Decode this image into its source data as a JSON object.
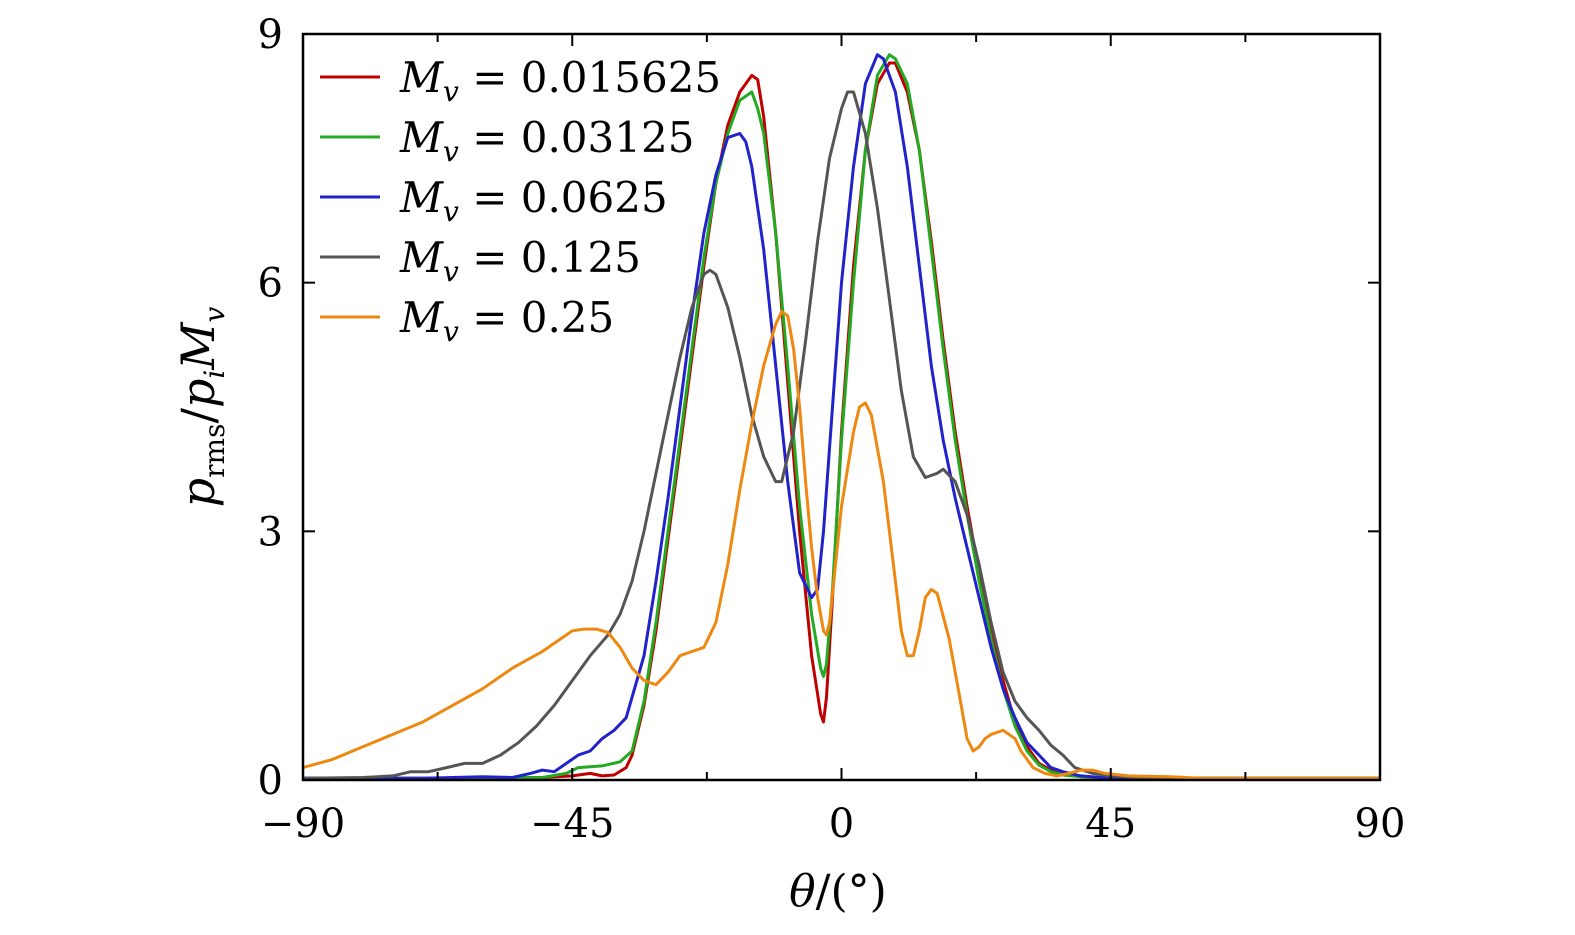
{
  "chart_data": {
    "type": "line",
    "title": "",
    "xlabel": "θ/(°)",
    "xlabel_parts": {
      "var": "θ",
      "rest": "/(°)"
    },
    "ylabel": "p_rms/p_i M_v",
    "ylabel_parts": {
      "p": "p",
      "rms": "rms",
      "slash": "/",
      "pi": "p",
      "i": "i",
      "M": "M",
      "v": "v"
    },
    "xlim": [
      -90,
      90
    ],
    "ylim": [
      0,
      9
    ],
    "xticks": [
      -90,
      -45,
      0,
      45,
      90
    ],
    "xtick_labels": [
      "−90",
      "−45",
      "0",
      "45",
      "90"
    ],
    "xminor": [
      -67.5,
      -22.5,
      22.5,
      67.5
    ],
    "yticks": [
      0,
      3,
      6,
      9
    ],
    "ytick_labels": [
      "0",
      "3",
      "6",
      "9"
    ],
    "grid": false,
    "legend_position": "top-left",
    "series": [
      {
        "name": "M_v = 0.015625",
        "label_value": "0.015625",
        "color": "#c00000",
        "points": [
          [
            -90,
            0.02
          ],
          [
            -60,
            0.02
          ],
          [
            -50,
            0.03
          ],
          [
            -45,
            0.05
          ],
          [
            -42,
            0.08
          ],
          [
            -40,
            0.05
          ],
          [
            -38,
            0.06
          ],
          [
            -36,
            0.15
          ],
          [
            -35,
            0.3
          ],
          [
            -33,
            0.9
          ],
          [
            -31,
            1.8
          ],
          [
            -29,
            2.9
          ],
          [
            -27,
            4.0
          ],
          [
            -25,
            5.1
          ],
          [
            -23,
            6.2
          ],
          [
            -21,
            7.2
          ],
          [
            -19,
            7.9
          ],
          [
            -17,
            8.3
          ],
          [
            -15,
            8.5
          ],
          [
            -14,
            8.45
          ],
          [
            -13,
            8.0
          ],
          [
            -11,
            6.6
          ],
          [
            -9,
            4.8
          ],
          [
            -7,
            3.0
          ],
          [
            -5,
            1.5
          ],
          [
            -3.5,
            0.8
          ],
          [
            -3,
            0.7
          ],
          [
            -2.5,
            1.0
          ],
          [
            -1.5,
            2.2
          ],
          [
            0,
            4.2
          ],
          [
            2,
            6.2
          ],
          [
            4,
            7.6
          ],
          [
            6,
            8.4
          ],
          [
            8,
            8.65
          ],
          [
            9,
            8.65
          ],
          [
            11,
            8.3
          ],
          [
            13,
            7.6
          ],
          [
            15,
            6.5
          ],
          [
            17,
            5.3
          ],
          [
            19,
            4.2
          ],
          [
            21,
            3.3
          ],
          [
            23,
            2.5
          ],
          [
            25,
            1.8
          ],
          [
            27,
            1.2
          ],
          [
            29,
            0.7
          ],
          [
            31,
            0.4
          ],
          [
            33,
            0.2
          ],
          [
            35,
            0.12
          ],
          [
            37,
            0.08
          ],
          [
            40,
            0.04
          ],
          [
            45,
            0.02
          ],
          [
            60,
            0.02
          ],
          [
            90,
            0.02
          ]
        ]
      },
      {
        "name": "M_v = 0.03125",
        "label_value": "0.03125",
        "color": "#22aa22",
        "points": [
          [
            -90,
            0.02
          ],
          [
            -60,
            0.02
          ],
          [
            -50,
            0.03
          ],
          [
            -46,
            0.08
          ],
          [
            -44,
            0.15
          ],
          [
            -40,
            0.17
          ],
          [
            -37,
            0.22
          ],
          [
            -35,
            0.35
          ],
          [
            -33,
            0.95
          ],
          [
            -31,
            1.9
          ],
          [
            -29,
            3.0
          ],
          [
            -27,
            4.1
          ],
          [
            -25,
            5.2
          ],
          [
            -23,
            6.3
          ],
          [
            -21,
            7.2
          ],
          [
            -19,
            7.8
          ],
          [
            -17,
            8.2
          ],
          [
            -15,
            8.3
          ],
          [
            -14,
            8.1
          ],
          [
            -13,
            7.8
          ],
          [
            -11,
            6.6
          ],
          [
            -9,
            5.0
          ],
          [
            -7,
            3.3
          ],
          [
            -5,
            2.0
          ],
          [
            -3.5,
            1.35
          ],
          [
            -3,
            1.25
          ],
          [
            -2.5,
            1.4
          ],
          [
            -1.5,
            2.3
          ],
          [
            0,
            4.1
          ],
          [
            2,
            6.0
          ],
          [
            4,
            7.6
          ],
          [
            6,
            8.5
          ],
          [
            8,
            8.75
          ],
          [
            9,
            8.7
          ],
          [
            11,
            8.4
          ],
          [
            13,
            7.6
          ],
          [
            15,
            6.4
          ],
          [
            17,
            5.2
          ],
          [
            19,
            4.1
          ],
          [
            21,
            3.2
          ],
          [
            23,
            2.4
          ],
          [
            25,
            1.7
          ],
          [
            27,
            1.1
          ],
          [
            29,
            0.65
          ],
          [
            31,
            0.35
          ],
          [
            33,
            0.18
          ],
          [
            35,
            0.1
          ],
          [
            37,
            0.06
          ],
          [
            40,
            0.04
          ],
          [
            45,
            0.02
          ],
          [
            60,
            0.02
          ],
          [
            90,
            0.02
          ]
        ]
      },
      {
        "name": "M_v = 0.0625",
        "label_value": "0.0625",
        "color": "#2222cc",
        "points": [
          [
            -90,
            0.02
          ],
          [
            -70,
            0.02
          ],
          [
            -60,
            0.04
          ],
          [
            -55,
            0.03
          ],
          [
            -52,
            0.08
          ],
          [
            -50,
            0.12
          ],
          [
            -48,
            0.1
          ],
          [
            -46,
            0.2
          ],
          [
            -44,
            0.3
          ],
          [
            -42,
            0.35
          ],
          [
            -40,
            0.5
          ],
          [
            -38,
            0.6
          ],
          [
            -36,
            0.75
          ],
          [
            -35,
            1.0
          ],
          [
            -33,
            1.5
          ],
          [
            -31,
            2.4
          ],
          [
            -29,
            3.4
          ],
          [
            -27,
            4.5
          ],
          [
            -25,
            5.6
          ],
          [
            -23,
            6.6
          ],
          [
            -21,
            7.3
          ],
          [
            -19,
            7.75
          ],
          [
            -17,
            7.8
          ],
          [
            -16,
            7.7
          ],
          [
            -15,
            7.4
          ],
          [
            -13,
            6.4
          ],
          [
            -11,
            5.0
          ],
          [
            -9,
            3.6
          ],
          [
            -7,
            2.5
          ],
          [
            -5,
            2.2
          ],
          [
            -4,
            2.3
          ],
          [
            -3,
            3.0
          ],
          [
            -1.5,
            4.5
          ],
          [
            0,
            6.0
          ],
          [
            2,
            7.4
          ],
          [
            4,
            8.4
          ],
          [
            6,
            8.75
          ],
          [
            7,
            8.7
          ],
          [
            9,
            8.3
          ],
          [
            11,
            7.4
          ],
          [
            13,
            6.2
          ],
          [
            15,
            5.0
          ],
          [
            17,
            4.1
          ],
          [
            19,
            3.4
          ],
          [
            21,
            2.8
          ],
          [
            23,
            2.2
          ],
          [
            25,
            1.6
          ],
          [
            27,
            1.1
          ],
          [
            29,
            0.75
          ],
          [
            31,
            0.45
          ],
          [
            33,
            0.3
          ],
          [
            35,
            0.15
          ],
          [
            37,
            0.1
          ],
          [
            40,
            0.05
          ],
          [
            45,
            0.02
          ],
          [
            60,
            0.02
          ],
          [
            90,
            0.02
          ]
        ]
      },
      {
        "name": "M_v = 0.125",
        "label_value": "0.125",
        "color": "#555555",
        "points": [
          [
            -90,
            0.02
          ],
          [
            -80,
            0.03
          ],
          [
            -75,
            0.05
          ],
          [
            -72,
            0.1
          ],
          [
            -69,
            0.1
          ],
          [
            -66,
            0.15
          ],
          [
            -63,
            0.2
          ],
          [
            -60,
            0.2
          ],
          [
            -57,
            0.3
          ],
          [
            -54,
            0.45
          ],
          [
            -51,
            0.65
          ],
          [
            -48,
            0.9
          ],
          [
            -45,
            1.2
          ],
          [
            -42,
            1.5
          ],
          [
            -39,
            1.75
          ],
          [
            -37,
            2.0
          ],
          [
            -35,
            2.4
          ],
          [
            -33,
            3.0
          ],
          [
            -31,
            3.7
          ],
          [
            -29,
            4.4
          ],
          [
            -27,
            5.1
          ],
          [
            -25,
            5.7
          ],
          [
            -23,
            6.1
          ],
          [
            -22,
            6.15
          ],
          [
            -21,
            6.1
          ],
          [
            -19,
            5.7
          ],
          [
            -17,
            5.1
          ],
          [
            -15,
            4.4
          ],
          [
            -13,
            3.9
          ],
          [
            -11,
            3.6
          ],
          [
            -10,
            3.6
          ],
          [
            -8,
            4.2
          ],
          [
            -6,
            5.3
          ],
          [
            -4,
            6.5
          ],
          [
            -2,
            7.5
          ],
          [
            0,
            8.1
          ],
          [
            1,
            8.3
          ],
          [
            2,
            8.3
          ],
          [
            4,
            7.8
          ],
          [
            6,
            6.9
          ],
          [
            8,
            5.8
          ],
          [
            10,
            4.7
          ],
          [
            12,
            3.9
          ],
          [
            14,
            3.65
          ],
          [
            16,
            3.7
          ],
          [
            17,
            3.75
          ],
          [
            19,
            3.6
          ],
          [
            21,
            3.2
          ],
          [
            23,
            2.6
          ],
          [
            25,
            1.9
          ],
          [
            27,
            1.3
          ],
          [
            29,
            0.95
          ],
          [
            31,
            0.75
          ],
          [
            33,
            0.6
          ],
          [
            35,
            0.42
          ],
          [
            37,
            0.3
          ],
          [
            39,
            0.15
          ],
          [
            42,
            0.08
          ],
          [
            45,
            0.05
          ],
          [
            50,
            0.03
          ],
          [
            60,
            0.02
          ],
          [
            90,
            0.02
          ]
        ]
      },
      {
        "name": "M_v = 0.25",
        "label_value": "0.25",
        "color": "#ee8811",
        "points": [
          [
            -90,
            0.15
          ],
          [
            -85,
            0.25
          ],
          [
            -80,
            0.4
          ],
          [
            -75,
            0.55
          ],
          [
            -70,
            0.7
          ],
          [
            -65,
            0.9
          ],
          [
            -60,
            1.1
          ],
          [
            -55,
            1.35
          ],
          [
            -50,
            1.55
          ],
          [
            -47,
            1.7
          ],
          [
            -45,
            1.8
          ],
          [
            -43,
            1.82
          ],
          [
            -41,
            1.82
          ],
          [
            -39,
            1.78
          ],
          [
            -37,
            1.6
          ],
          [
            -35,
            1.35
          ],
          [
            -33,
            1.2
          ],
          [
            -31,
            1.15
          ],
          [
            -29,
            1.3
          ],
          [
            -27,
            1.5
          ],
          [
            -25,
            1.55
          ],
          [
            -23,
            1.6
          ],
          [
            -21,
            1.9
          ],
          [
            -19,
            2.6
          ],
          [
            -17,
            3.5
          ],
          [
            -15,
            4.3
          ],
          [
            -13,
            5.0
          ],
          [
            -11,
            5.5
          ],
          [
            -10,
            5.65
          ],
          [
            -9,
            5.6
          ],
          [
            -8,
            5.2
          ],
          [
            -7,
            4.5
          ],
          [
            -6,
            3.6
          ],
          [
            -5,
            2.8
          ],
          [
            -4,
            2.2
          ],
          [
            -3,
            1.8
          ],
          [
            -2.5,
            1.75
          ],
          [
            -2,
            1.9
          ],
          [
            -1,
            2.6
          ],
          [
            0,
            3.3
          ],
          [
            2,
            4.2
          ],
          [
            3,
            4.5
          ],
          [
            4,
            4.55
          ],
          [
            5,
            4.4
          ],
          [
            7,
            3.6
          ],
          [
            9,
            2.4
          ],
          [
            10,
            1.8
          ],
          [
            11,
            1.5
          ],
          [
            12,
            1.5
          ],
          [
            13,
            1.8
          ],
          [
            14,
            2.2
          ],
          [
            15,
            2.3
          ],
          [
            16,
            2.25
          ],
          [
            18,
            1.7
          ],
          [
            20,
            0.9
          ],
          [
            21,
            0.5
          ],
          [
            22,
            0.35
          ],
          [
            23,
            0.4
          ],
          [
            24,
            0.5
          ],
          [
            25,
            0.55
          ],
          [
            27,
            0.6
          ],
          [
            29,
            0.5
          ],
          [
            30,
            0.35
          ],
          [
            32,
            0.15
          ],
          [
            34,
            0.08
          ],
          [
            36,
            0.05
          ],
          [
            38,
            0.08
          ],
          [
            40,
            0.12
          ],
          [
            42,
            0.12
          ],
          [
            44,
            0.08
          ],
          [
            48,
            0.05
          ],
          [
            55,
            0.04
          ],
          [
            60,
            0.02
          ],
          [
            65,
            0.02
          ],
          [
            70,
            0.02
          ],
          [
            75,
            0.02
          ],
          [
            90,
            0.02
          ]
        ]
      }
    ]
  }
}
